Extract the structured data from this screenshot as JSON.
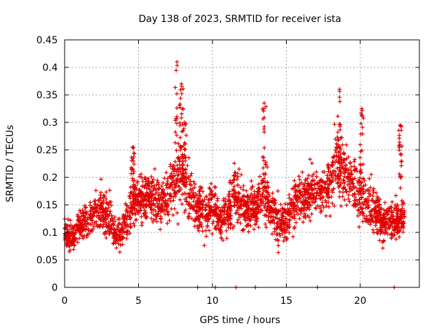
{
  "chart_data": {
    "type": "scatter",
    "title": "Day 138 of 2023, SRMTID for receiver ista",
    "xlabel": "GPS time / hours",
    "ylabel": "SRMTID / TECUs",
    "xlim": [
      0,
      24
    ],
    "ylim": [
      0,
      0.45
    ],
    "xticks": [
      "0",
      "5",
      "10",
      "15",
      "20"
    ],
    "xtick_values": [
      0,
      5,
      10,
      15,
      20
    ],
    "yticks": [
      "0",
      "0.05",
      "0.1",
      "0.15",
      "0.2",
      "0.25",
      "0.3",
      "0.35",
      "0.4",
      "0.45"
    ],
    "ytick_values": [
      0,
      0.05,
      0.1,
      0.15,
      0.2,
      0.25,
      0.3,
      0.35,
      0.4,
      0.45
    ],
    "grid": true,
    "marker": "plus",
    "series_color": "#e00000",
    "profile": {
      "x": [
        0,
        0.5,
        1,
        1.5,
        2,
        2.5,
        3,
        3.5,
        4,
        4.5,
        5,
        5.5,
        6,
        6.5,
        7,
        7.5,
        8,
        8.5,
        9,
        9.5,
        10,
        10.5,
        11,
        11.5,
        12,
        12.5,
        13,
        13.5,
        14,
        14.5,
        15,
        15.5,
        16,
        16.5,
        17,
        17.5,
        18,
        18.5,
        19,
        19.5,
        20,
        20.5,
        21,
        21.5,
        22,
        22.5,
        23
      ],
      "center": [
        0.1,
        0.09,
        0.11,
        0.12,
        0.13,
        0.14,
        0.13,
        0.09,
        0.11,
        0.15,
        0.16,
        0.17,
        0.16,
        0.15,
        0.17,
        0.2,
        0.2,
        0.17,
        0.14,
        0.14,
        0.15,
        0.12,
        0.13,
        0.17,
        0.15,
        0.14,
        0.15,
        0.17,
        0.14,
        0.12,
        0.12,
        0.15,
        0.16,
        0.17,
        0.18,
        0.17,
        0.2,
        0.23,
        0.2,
        0.19,
        0.17,
        0.15,
        0.14,
        0.12,
        0.12,
        0.12,
        0.13
      ],
      "spread": [
        0.03,
        0.03,
        0.03,
        0.04,
        0.04,
        0.05,
        0.05,
        0.03,
        0.04,
        0.05,
        0.05,
        0.05,
        0.05,
        0.05,
        0.06,
        0.08,
        0.08,
        0.06,
        0.05,
        0.05,
        0.05,
        0.04,
        0.05,
        0.06,
        0.05,
        0.05,
        0.05,
        0.06,
        0.05,
        0.05,
        0.04,
        0.05,
        0.05,
        0.05,
        0.05,
        0.06,
        0.07,
        0.07,
        0.07,
        0.06,
        0.06,
        0.05,
        0.05,
        0.04,
        0.04,
        0.04,
        0.04
      ]
    },
    "peaks": [
      {
        "x": 7.6,
        "y": 0.41
      },
      {
        "x": 7.9,
        "y": 0.37
      },
      {
        "x": 13.5,
        "y": 0.335
      },
      {
        "x": 18.6,
        "y": 0.36
      },
      {
        "x": 20.1,
        "y": 0.325
      },
      {
        "x": 22.7,
        "y": 0.295
      },
      {
        "x": 8.1,
        "y": 0.3
      },
      {
        "x": 4.6,
        "y": 0.255
      }
    ],
    "zero_points_x": [
      9.0,
      10.2,
      11.6,
      12.9,
      17.1,
      22.3
    ],
    "point_count": 2600,
    "x_range_data": [
      0,
      23.0
    ]
  }
}
